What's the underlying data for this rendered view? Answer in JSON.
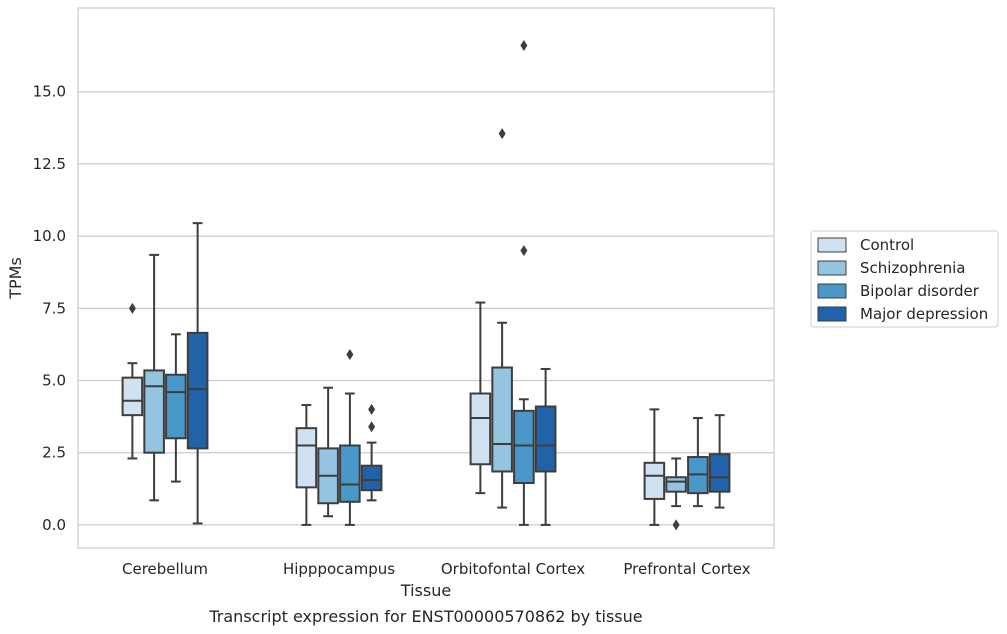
{
  "chart_data": {
    "type": "box",
    "title": "",
    "caption": "Transcript expression for ENST00000570862 by tissue",
    "xlabel": "Tissue",
    "ylabel": "TPMs",
    "ylim": [
      -0.8,
      17.9
    ],
    "yticks": [
      "0.0",
      "2.5",
      "5.0",
      "7.5",
      "10.0",
      "12.5",
      "15.0"
    ],
    "yticks_values": [
      0,
      2.5,
      5,
      7.5,
      10,
      12.5,
      15
    ],
    "grid": true,
    "legend_position": "right",
    "categories": [
      "Cerebellum",
      "Hipppocampus",
      "Orbitofontal Cortex",
      "Prefrontal Cortex"
    ],
    "series": [
      {
        "name": "Control",
        "color": "#d0e1f2",
        "boxes": [
          {
            "whisker_low": 2.3,
            "q1": 3.8,
            "median": 4.3,
            "q3": 5.1,
            "whisker_high": 5.6,
            "outliers": [
              7.5
            ]
          },
          {
            "whisker_low": 0.0,
            "q1": 1.3,
            "median": 2.75,
            "q3": 3.35,
            "whisker_high": 4.15,
            "outliers": []
          },
          {
            "whisker_low": 1.1,
            "q1": 2.1,
            "median": 3.7,
            "q3": 4.55,
            "whisker_high": 7.7,
            "outliers": []
          },
          {
            "whisker_low": 0.0,
            "q1": 0.9,
            "median": 1.7,
            "q3": 2.15,
            "whisker_high": 4.0,
            "outliers": []
          }
        ]
      },
      {
        "name": "Schizophrenia",
        "color": "#94c4df",
        "boxes": [
          {
            "whisker_low": 0.85,
            "q1": 2.5,
            "median": 4.8,
            "q3": 5.35,
            "whisker_high": 9.35,
            "outliers": []
          },
          {
            "whisker_low": 0.3,
            "q1": 0.75,
            "median": 1.7,
            "q3": 2.65,
            "whisker_high": 4.75,
            "outliers": []
          },
          {
            "whisker_low": 0.6,
            "q1": 1.85,
            "median": 2.8,
            "q3": 5.45,
            "whisker_high": 7.0,
            "outliers": [
              13.55
            ]
          },
          {
            "whisker_low": 0.65,
            "q1": 1.15,
            "median": 1.5,
            "q3": 1.65,
            "whisker_high": 2.3,
            "outliers": [
              0.0
            ]
          }
        ]
      },
      {
        "name": "Bipolar disorder",
        "color": "#4a98c9",
        "boxes": [
          {
            "whisker_low": 1.5,
            "q1": 3.0,
            "median": 4.6,
            "q3": 5.2,
            "whisker_high": 6.6,
            "outliers": []
          },
          {
            "whisker_low": 0.0,
            "q1": 0.8,
            "median": 1.4,
            "q3": 2.75,
            "whisker_high": 4.55,
            "outliers": [
              5.9
            ]
          },
          {
            "whisker_low": 0.0,
            "q1": 1.45,
            "median": 2.75,
            "q3": 3.95,
            "whisker_high": 4.35,
            "outliers": [
              9.5,
              16.6
            ]
          },
          {
            "whisker_low": 0.65,
            "q1": 1.1,
            "median": 1.75,
            "q3": 2.35,
            "whisker_high": 3.7,
            "outliers": []
          }
        ]
      },
      {
        "name": "Major depression",
        "color": "#2163aa",
        "boxes": [
          {
            "whisker_low": 0.05,
            "q1": 2.65,
            "median": 4.7,
            "q3": 6.65,
            "whisker_high": 10.45,
            "outliers": []
          },
          {
            "whisker_low": 0.85,
            "q1": 1.2,
            "median": 1.55,
            "q3": 2.05,
            "whisker_high": 2.85,
            "outliers": [
              3.4,
              4.0
            ]
          },
          {
            "whisker_low": 0.0,
            "q1": 1.85,
            "median": 2.75,
            "q3": 4.1,
            "whisker_high": 5.4,
            "outliers": []
          },
          {
            "whisker_low": 0.6,
            "q1": 1.15,
            "median": 1.65,
            "q3": 2.45,
            "whisker_high": 3.8,
            "outliers": []
          }
        ]
      }
    ]
  }
}
